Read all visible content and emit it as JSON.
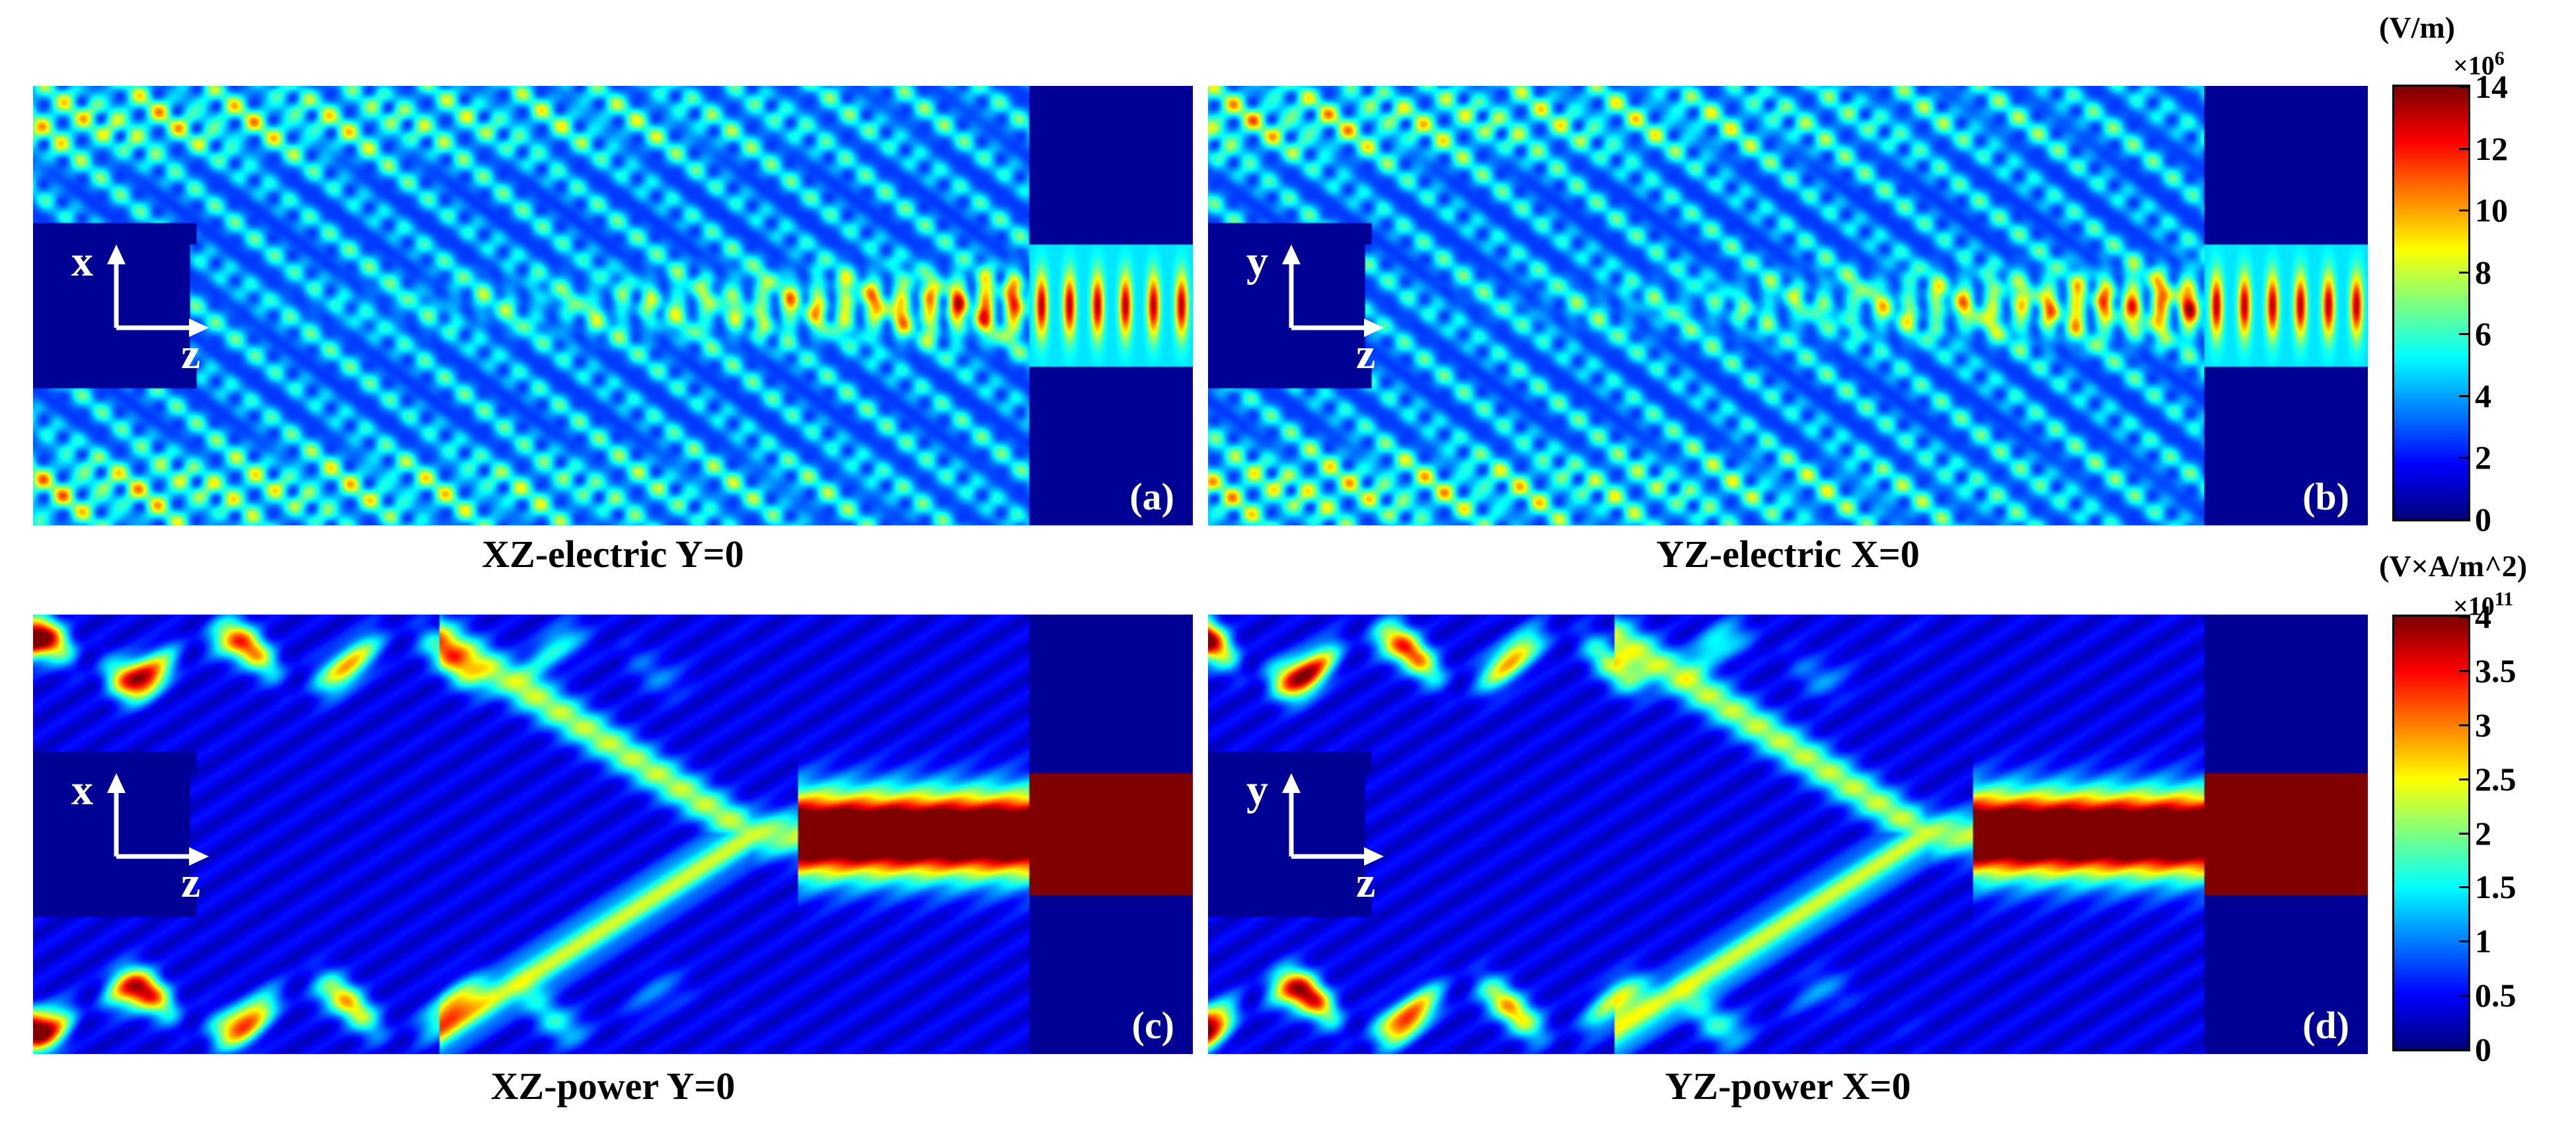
{
  "panels": [
    {
      "letter": "(a)",
      "caption": "XZ-electric  Y=0",
      "axis_v": "x",
      "axis_h": "z",
      "quantity": "electric"
    },
    {
      "letter": "(b)",
      "caption": "YZ-electric  X=0",
      "axis_v": "y",
      "axis_h": "z",
      "quantity": "electric"
    },
    {
      "letter": "(c)",
      "caption": "XZ-power  Y=0",
      "axis_v": "x",
      "axis_h": "z",
      "quantity": "power"
    },
    {
      "letter": "(d)",
      "caption": "YZ-power  X=0",
      "axis_v": "y",
      "axis_h": "z",
      "quantity": "power"
    }
  ],
  "colorbars": [
    {
      "unit": "(V/m)",
      "multiplier_base": "×10",
      "multiplier_exp": "6",
      "ticks": [
        "14",
        "12",
        "10",
        "8",
        "6",
        "4",
        "2",
        "0"
      ],
      "min": 0,
      "max": 14
    },
    {
      "unit": "(V×A/m^2)",
      "multiplier_base": "×10",
      "multiplier_exp": "11",
      "ticks": [
        "4",
        "3.5",
        "3",
        "2.5",
        "2",
        "1.5",
        "1",
        "0.5",
        "0"
      ],
      "min": 0,
      "max": 4
    }
  ],
  "colors": {
    "colormap": "jet",
    "background": "#00008f",
    "label_color": "#ffffff"
  },
  "chart_data": [
    {
      "type": "heatmap",
      "title": "XZ-electric  Y=0",
      "xlabel": "z",
      "ylabel": "x",
      "colorbar_range": [
        0,
        14
      ],
      "colorbar_unit": "(V/m) ×10^6"
    },
    {
      "type": "heatmap",
      "title": "YZ-electric  X=0",
      "xlabel": "z",
      "ylabel": "y",
      "colorbar_range": [
        0,
        14
      ],
      "colorbar_unit": "(V/m) ×10^6"
    },
    {
      "type": "heatmap",
      "title": "XZ-power  Y=0",
      "xlabel": "z",
      "ylabel": "x",
      "colorbar_range": [
        0,
        4
      ],
      "colorbar_unit": "(V×A/m^2) ×10^11"
    },
    {
      "type": "heatmap",
      "title": "YZ-power  X=0",
      "xlabel": "z",
      "ylabel": "y",
      "colorbar_range": [
        0,
        4
      ],
      "colorbar_unit": "(V×A/m^2) ×10^11"
    }
  ]
}
